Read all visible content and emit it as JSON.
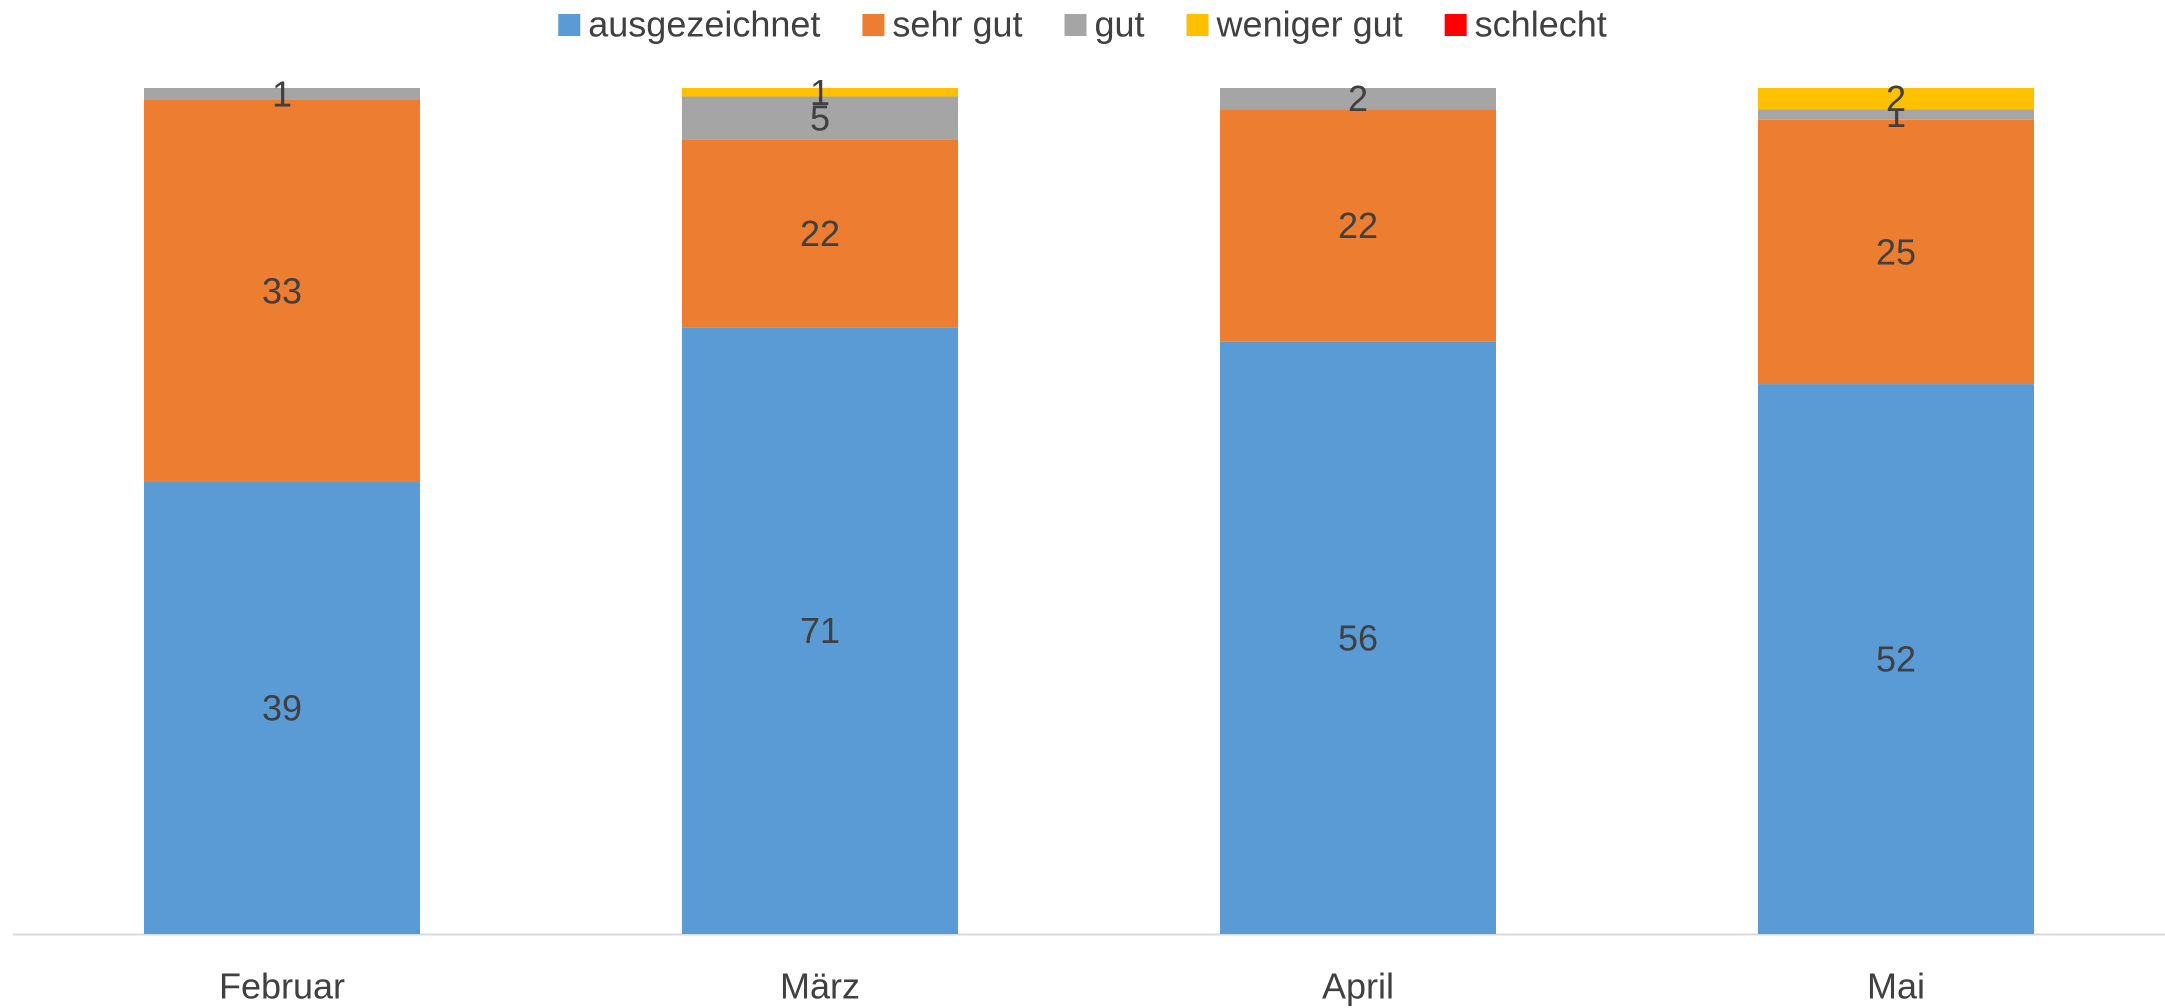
{
  "chart_data": {
    "type": "bar",
    "stacked": "percent",
    "categories": [
      "Februar",
      "März",
      "April",
      "Mai"
    ],
    "series": [
      {
        "name": "ausgezeichnet",
        "color": "#5b9bd5",
        "values": [
          39,
          71,
          56,
          52
        ]
      },
      {
        "name": "sehr gut",
        "color": "#ed7d31",
        "values": [
          33,
          22,
          22,
          25
        ]
      },
      {
        "name": "gut",
        "color": "#a5a5a5",
        "values": [
          1,
          5,
          2,
          1
        ]
      },
      {
        "name": "weniger gut",
        "color": "#ffc000",
        "values": [
          0,
          1,
          0,
          2
        ]
      },
      {
        "name": "schlecht",
        "color": "#ff0000",
        "values": [
          0,
          0,
          0,
          0
        ]
      }
    ],
    "legend": "top"
  }
}
